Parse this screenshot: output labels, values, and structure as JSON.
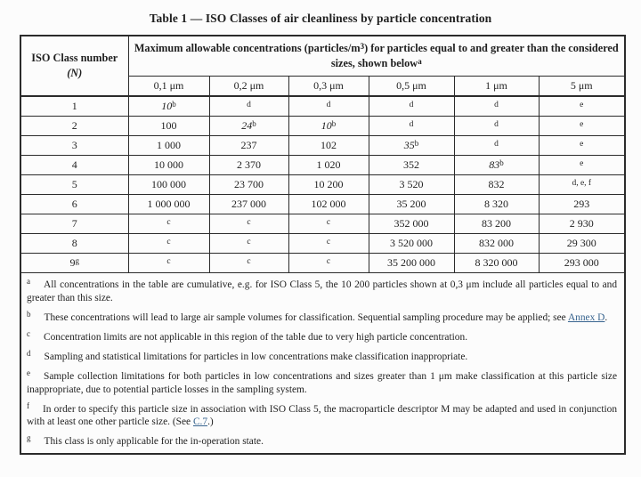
{
  "title": "Table 1 — ISO Classes of air cleanliness by particle concentration",
  "table": {
    "class_header_line1": "ISO Class number",
    "class_header_line2": "(N)",
    "main_header": {
      "text_before_sup3": "Maximum allowable concentrations (particles/m",
      "sup3": "3",
      "text_after_sup3": ") for particles equal to and greater than the considered sizes, shown below",
      "sup_note": "a"
    },
    "size_headers": [
      "0,1 μm",
      "0,2 μm",
      "0,3 μm",
      "0,5 μm",
      "1 μm",
      "5 μm"
    ],
    "rows": [
      {
        "class": {
          "v": "1"
        },
        "cells": [
          {
            "v": "10",
            "sup": "b",
            "i": true
          },
          {
            "note": "d"
          },
          {
            "note": "d"
          },
          {
            "note": "d"
          },
          {
            "note": "d"
          },
          {
            "note": "e"
          }
        ]
      },
      {
        "class": {
          "v": "2"
        },
        "cells": [
          {
            "v": "100"
          },
          {
            "v": "24",
            "sup": "b",
            "i": true
          },
          {
            "v": "10",
            "sup": "b",
            "i": true
          },
          {
            "note": "d"
          },
          {
            "note": "d"
          },
          {
            "note": "e"
          }
        ]
      },
      {
        "class": {
          "v": "3"
        },
        "cells": [
          {
            "v": "1 000"
          },
          {
            "v": "237"
          },
          {
            "v": "102"
          },
          {
            "v": "35",
            "sup": "b",
            "i": true
          },
          {
            "note": "d"
          },
          {
            "note": "e"
          }
        ]
      },
      {
        "class": {
          "v": "4"
        },
        "cells": [
          {
            "v": "10 000"
          },
          {
            "v": "2 370"
          },
          {
            "v": "1 020"
          },
          {
            "v": "352"
          },
          {
            "v": "83",
            "sup": "b",
            "i": true
          },
          {
            "note": "e"
          }
        ]
      },
      {
        "class": {
          "v": "5"
        },
        "cells": [
          {
            "v": "100 000"
          },
          {
            "v": "23 700"
          },
          {
            "v": "10 200"
          },
          {
            "v": "3 520"
          },
          {
            "v": "832"
          },
          {
            "note": "d, e, f"
          }
        ]
      },
      {
        "class": {
          "v": "6"
        },
        "cells": [
          {
            "v": "1 000 000"
          },
          {
            "v": "237 000"
          },
          {
            "v": "102 000"
          },
          {
            "v": "35 200"
          },
          {
            "v": "8 320"
          },
          {
            "v": "293"
          }
        ]
      },
      {
        "class": {
          "v": "7"
        },
        "cells": [
          {
            "note": "c"
          },
          {
            "note": "c"
          },
          {
            "note": "c"
          },
          {
            "v": "352 000"
          },
          {
            "v": "83 200"
          },
          {
            "v": "2 930"
          }
        ]
      },
      {
        "class": {
          "v": "8"
        },
        "cells": [
          {
            "note": "c"
          },
          {
            "note": "c"
          },
          {
            "note": "c"
          },
          {
            "v": "3 520 000"
          },
          {
            "v": "832 000"
          },
          {
            "v": "29 300"
          }
        ]
      },
      {
        "class": {
          "v": "9",
          "sup": "g"
        },
        "cells": [
          {
            "note": "c"
          },
          {
            "note": "c"
          },
          {
            "note": "c"
          },
          {
            "v": "35 200 000"
          },
          {
            "v": "8 320 000"
          },
          {
            "v": "293 000"
          }
        ]
      }
    ]
  },
  "footnotes": [
    {
      "id": "a",
      "parts": [
        {
          "t": "All concentrations in the table are cumulative, e.g. for ISO Class 5, the 10 200 particles shown at 0,3 μm include all particles equal to and greater than this size."
        }
      ]
    },
    {
      "id": "b",
      "parts": [
        {
          "t": "These concentrations will lead to large air sample volumes for classification. Sequential sampling procedure may be applied; see "
        },
        {
          "t": "Annex D",
          "link": true
        },
        {
          "t": "."
        }
      ]
    },
    {
      "id": "c",
      "parts": [
        {
          "t": "Concentration limits are not applicable in this region of the table due to very high particle concentration."
        }
      ]
    },
    {
      "id": "d",
      "parts": [
        {
          "t": "Sampling and statistical limitations for particles in low concentrations make classification inappropriate."
        }
      ]
    },
    {
      "id": "e",
      "parts": [
        {
          "t": "Sample collection limitations for both particles in low concentrations and sizes greater than 1 μm make classification at this particle size inappropriate, due to potential particle losses in the sampling system."
        }
      ]
    },
    {
      "id": "f",
      "parts": [
        {
          "t": "In order to specify this particle size in association with ISO Class 5, the macroparticle descriptor M may be adapted and used in conjunction with at least one other particle size. (See "
        },
        {
          "t": "C.7",
          "link": true
        },
        {
          "t": ".)"
        }
      ]
    },
    {
      "id": "g",
      "parts": [
        {
          "t": "This class is only applicable for the in-operation state."
        }
      ]
    }
  ],
  "colors": {
    "background": "#fcfcfc",
    "text": "#1f1f1f",
    "border": "#2b2b2b",
    "link": "#38648f"
  }
}
